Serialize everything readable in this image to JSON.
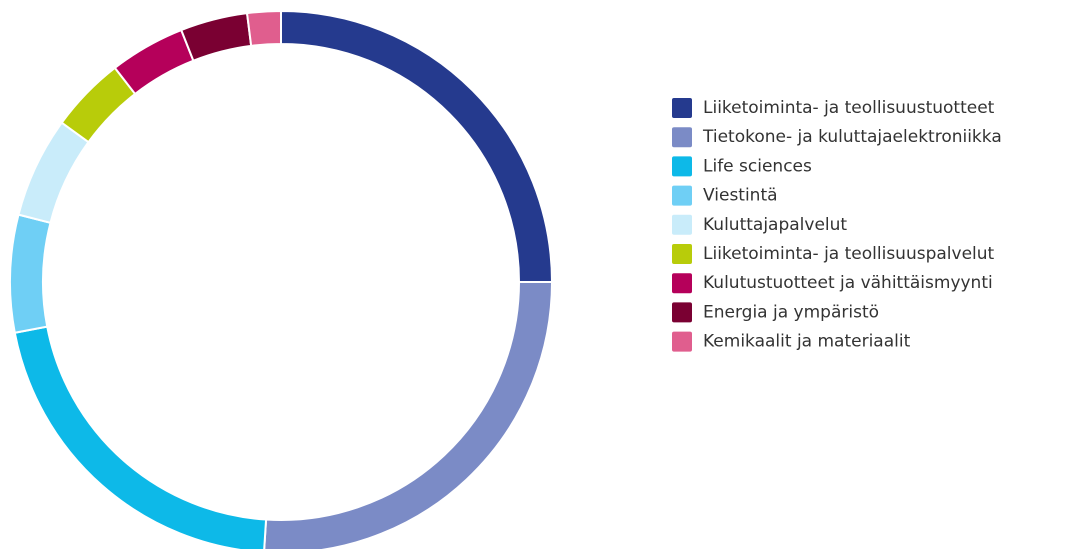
{
  "chart_data": {
    "type": "donut",
    "categories": [
      "Liiketoiminta- ja teollisuustuotteet",
      "Tietokone- ja kuluttajaelektroniikka",
      "Life sciences",
      "Viestintä",
      "Kuluttajapalvelut",
      "Liiketoiminta- ja teollisuuspalvelut",
      "Kulutustuotteet ja vähittäismyynti",
      "Energia ja ympäristö",
      "Kemikaalit ja materiaalit"
    ],
    "values": [
      25,
      26,
      21,
      7,
      6,
      4.5,
      4.5,
      4,
      2
    ],
    "colors": [
      "#253a8e",
      "#7b8bc6",
      "#0db9e8",
      "#6fcff5",
      "#c9ecfa",
      "#b8cc0a",
      "#b5005a",
      "#7a0032",
      "#e05e8e"
    ]
  }
}
